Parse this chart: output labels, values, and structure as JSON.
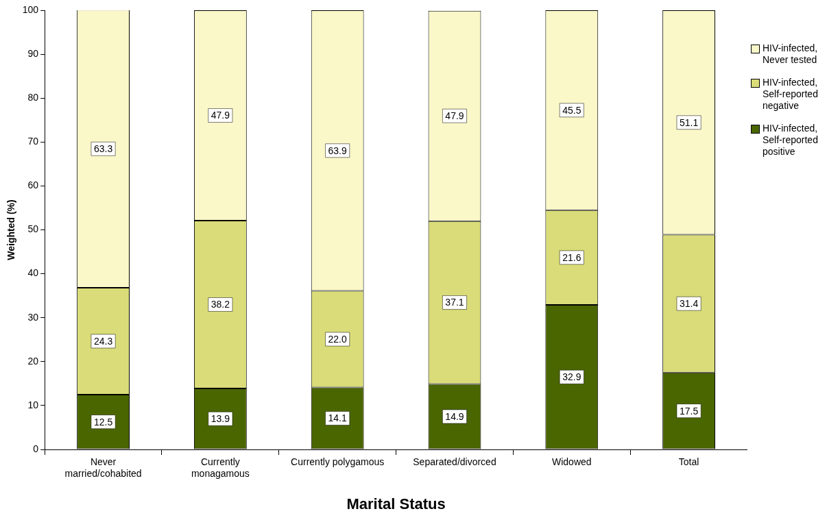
{
  "chart_data": {
    "type": "bar",
    "stacked": true,
    "xlabel": "Marital Status",
    "ylabel": "Weighted (%)",
    "categories": [
      "Never married/cohabited",
      "Currently monagamous",
      "Currently polygamous",
      "Separated/divorced",
      "Widowed",
      "Total"
    ],
    "series": [
      {
        "name": "HIV-infected, Self-reported positive",
        "color": "#4a6600",
        "values": [
          12.5,
          13.9,
          14.1,
          14.9,
          32.9,
          17.5
        ],
        "value_labels": [
          "12.5",
          "13.9",
          "14.1",
          "14.9",
          "32.9",
          "17.5"
        ]
      },
      {
        "name": "HIV-infected, Self-reported negative",
        "color": "#d9dc78",
        "values": [
          24.3,
          38.2,
          22.0,
          37.1,
          21.6,
          31.4
        ],
        "value_labels": [
          "24.3",
          "38.2",
          "22.0",
          "37.1",
          "21.6",
          "31.4"
        ]
      },
      {
        "name": "HIV-infected, Never tested",
        "color": "#faf7c8",
        "values": [
          63.3,
          47.9,
          63.9,
          47.9,
          45.5,
          51.1
        ],
        "value_labels": [
          "63.3",
          "47.9",
          "63.9",
          "47.9",
          "45.5",
          "51.1"
        ]
      }
    ],
    "ylim": [
      0,
      100
    ],
    "yticks": [
      0,
      10,
      20,
      30,
      40,
      50,
      60,
      70,
      80,
      90,
      100
    ],
    "grid": false,
    "legend": "right"
  }
}
